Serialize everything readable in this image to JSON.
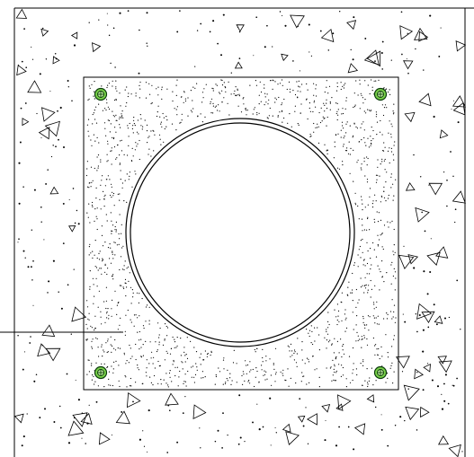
{
  "drawing": {
    "subject": "pipe-penetration-detail",
    "colors": {
      "line": "#000000",
      "background": "#ffffff",
      "anchor_fill": "#7ad14a",
      "anchor_core": "#c8f0a8"
    },
    "anchors": [
      {
        "name": "anchor-top-left"
      },
      {
        "name": "anchor-top-right"
      },
      {
        "name": "anchor-bottom-left"
      },
      {
        "name": "anchor-bottom-right"
      }
    ],
    "hatch": {
      "outer_pattern": "concrete",
      "inner_pattern": "sand-grout"
    }
  }
}
